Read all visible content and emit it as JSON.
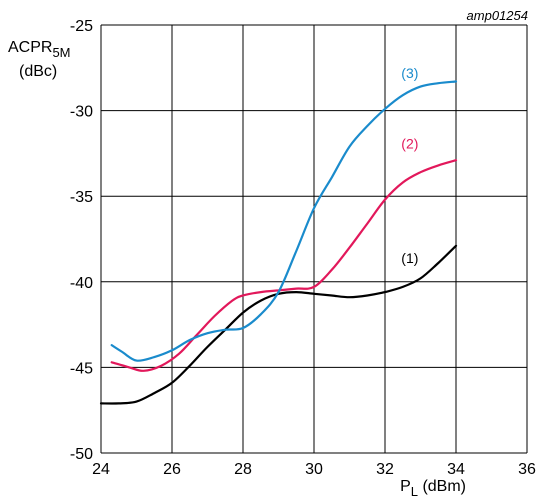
{
  "chart_data": {
    "type": "line",
    "code": "amp01254",
    "ylabel_main": "ACPR",
    "ylabel_sub": "5M",
    "ylabel_unit": "(dBc)",
    "xlabel_main": "P",
    "xlabel_sub": "L",
    "xlabel_unit": " (dBm)",
    "xlim": [
      24,
      36
    ],
    "ylim": [
      -50,
      -25
    ],
    "x_ticks": [
      24,
      26,
      28,
      30,
      32,
      34,
      36
    ],
    "y_ticks": [
      -25,
      -30,
      -35,
      -40,
      -45,
      -50
    ],
    "x_tick_labels": [
      "24",
      "26",
      "28",
      "30",
      "32",
      "34",
      "36"
    ],
    "y_tick_labels": [
      "-25",
      "-30",
      "-35",
      "-40",
      "-45",
      "-50"
    ],
    "grid": true,
    "series": [
      {
        "name": "(1)",
        "color": "#000000",
        "x": [
          24.0,
          24.5,
          25.0,
          25.5,
          26.0,
          26.5,
          27.0,
          27.5,
          28.0,
          28.5,
          29.0,
          29.5,
          30.0,
          30.5,
          31.0,
          31.5,
          32.0,
          32.5,
          33.0,
          33.5,
          34.0
        ],
        "y": [
          -47.1,
          -47.1,
          -47.0,
          -46.5,
          -45.9,
          -44.9,
          -43.8,
          -42.8,
          -41.8,
          -41.1,
          -40.7,
          -40.6,
          -40.7,
          -40.8,
          -40.9,
          -40.8,
          -40.6,
          -40.3,
          -39.8,
          -38.9,
          -37.9
        ]
      },
      {
        "name": "(2)",
        "color": "#e2185b",
        "x": [
          24.3,
          24.8,
          25.2,
          25.7,
          26.2,
          26.7,
          27.2,
          27.7,
          28.0,
          28.5,
          29.0,
          29.5,
          30.0,
          30.5,
          31.0,
          31.5,
          32.0,
          32.5,
          33.0,
          33.5,
          34.0
        ],
        "y": [
          -44.7,
          -45.0,
          -45.2,
          -44.9,
          -44.2,
          -43.1,
          -42.0,
          -41.1,
          -40.8,
          -40.6,
          -40.5,
          -40.4,
          -40.3,
          -39.3,
          -38.0,
          -36.6,
          -35.2,
          -34.2,
          -33.6,
          -33.2,
          -32.9
        ]
      },
      {
        "name": "(3)",
        "color": "#1a8bcc",
        "x": [
          24.3,
          24.6,
          25.0,
          25.5,
          26.0,
          26.5,
          27.0,
          27.5,
          28.0,
          28.5,
          29.0,
          29.5,
          30.0,
          30.5,
          31.0,
          31.5,
          32.0,
          32.5,
          33.0,
          33.5,
          34.0
        ],
        "y": [
          -43.7,
          -44.1,
          -44.6,
          -44.4,
          -44.0,
          -43.4,
          -43.0,
          -42.8,
          -42.7,
          -41.9,
          -40.6,
          -38.2,
          -35.7,
          -33.9,
          -32.1,
          -30.9,
          -29.9,
          -29.1,
          -28.6,
          -28.4,
          -28.3
        ]
      }
    ],
    "annotations": [
      {
        "text": "(1)",
        "x": 32.7,
        "y": -38.9,
        "color": "#000000"
      },
      {
        "text": "(2)",
        "x": 32.7,
        "y": -32.2,
        "color": "#e2185b"
      },
      {
        "text": "(3)",
        "x": 32.7,
        "y": -28.1,
        "color": "#1a8bcc"
      }
    ]
  }
}
